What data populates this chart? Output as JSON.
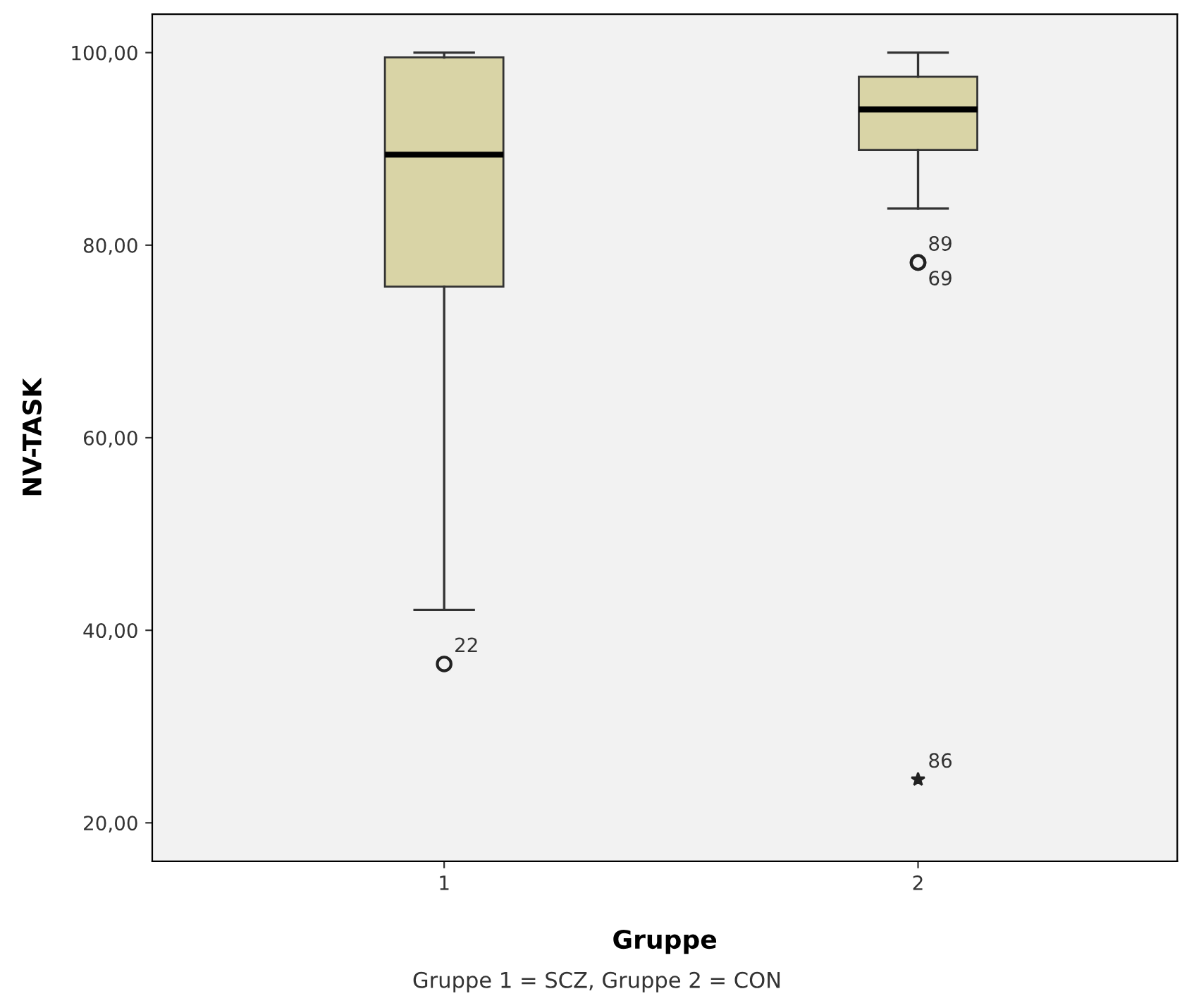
{
  "chart_data": {
    "type": "box",
    "xlabel": "Gruppe",
    "ylabel": "NV-TASK",
    "categories": [
      "1",
      "2"
    ],
    "color": "#d9d4a6",
    "boxes": [
      {
        "low": 42.1,
        "q1": 75.7,
        "median": 89.4,
        "q3": 99.5,
        "high": 100,
        "outliers": [
          36.5
        ]
      },
      {
        "low": 83.8,
        "q1": 89.9,
        "median": 94.1,
        "q3": 97.5,
        "high": 100,
        "outliers": [
          78.2,
          78.2,
          24.5
        ]
      }
    ],
    "ylim": [
      16,
      104
    ],
    "yticks": [
      {
        "value": 20,
        "label": "20,00"
      },
      {
        "value": 40,
        "label": "40,00"
      },
      {
        "value": 60,
        "label": "60,00"
      },
      {
        "value": 80,
        "label": "80,00"
      },
      {
        "value": 100,
        "label": "100,00"
      }
    ],
    "grid": false,
    "annotations": [
      "22",
      "89",
      "69",
      "86",
      "Gruppe 1 = SCZ, Gruppe 2 = CON"
    ]
  }
}
